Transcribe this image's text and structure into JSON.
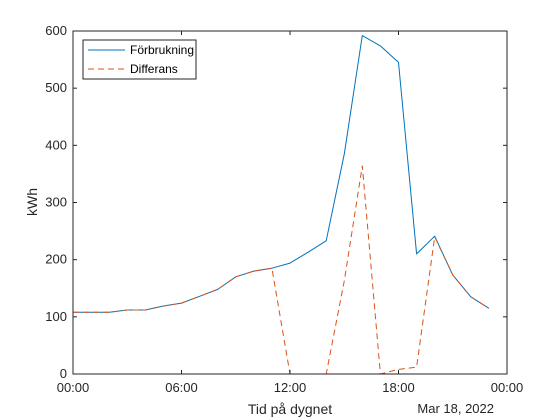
{
  "chart_data": {
    "type": "line",
    "xlabel": "Tid på dygnet",
    "ylabel": "kWh",
    "date_label": "Mar 18, 2022",
    "x_ticks": [
      "00:00",
      "06:00",
      "12:00",
      "18:00",
      "00:00"
    ],
    "y_ticks": [
      "0",
      "100",
      "200",
      "300",
      "400",
      "500",
      "600"
    ],
    "xlim_hours": [
      0,
      24
    ],
    "ylim": [
      0,
      600
    ],
    "grid": false,
    "legend_position": "top-left",
    "series": [
      {
        "name": "Förbrukning",
        "color": "#0072BD",
        "style": "solid",
        "x_hours": [
          0,
          1,
          2,
          3,
          4,
          5,
          6,
          7,
          8,
          9,
          10,
          11,
          12,
          13,
          14,
          15,
          16,
          17,
          18,
          19,
          20,
          21,
          22,
          23
        ],
        "values": [
          108,
          108,
          108,
          112,
          112,
          119,
          124,
          136,
          148,
          170,
          180,
          185,
          194,
          213,
          233,
          385,
          592,
          574,
          545,
          210,
          241,
          173,
          135,
          115
        ]
      },
      {
        "name": "Differans",
        "color": "#D95319",
        "style": "dashed",
        "x_hours": [
          0,
          1,
          2,
          3,
          4,
          5,
          6,
          7,
          8,
          9,
          10,
          11,
          12,
          13,
          14,
          15,
          16,
          17,
          18,
          19,
          20,
          21,
          22,
          23
        ],
        "values": [
          108,
          108,
          108,
          112,
          112,
          119,
          124,
          136,
          148,
          170,
          180,
          185,
          0,
          0,
          0,
          163,
          364,
          0,
          8,
          12,
          240,
          173,
          135,
          115
        ]
      }
    ]
  }
}
